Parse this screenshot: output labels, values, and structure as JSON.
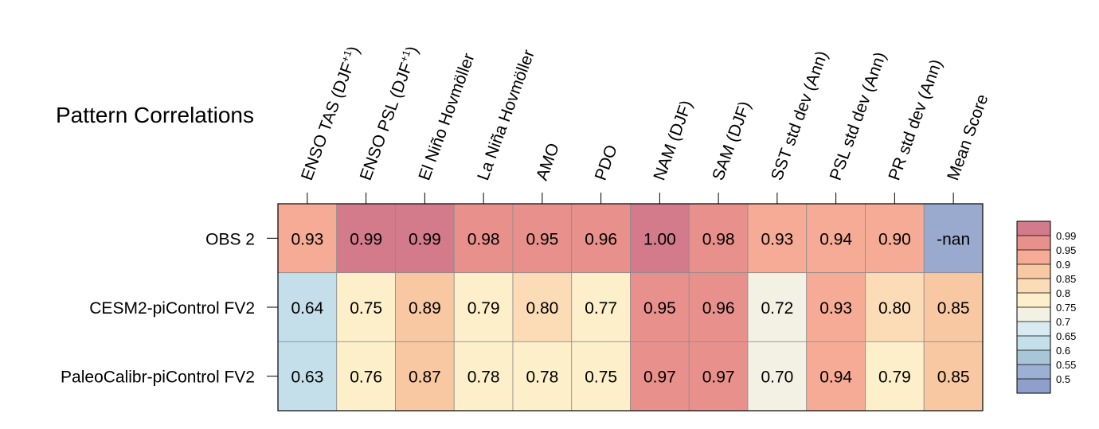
{
  "chart_data": {
    "type": "heatmap",
    "title": "Pattern Correlations",
    "columns": [
      {
        "label": "ENSO TAS (DJF",
        "sup": "+1",
        "suffix": ")"
      },
      {
        "label": "ENSO PSL (DJF",
        "sup": "+1",
        "suffix": ")"
      },
      {
        "label": "El Niño Hovmöller"
      },
      {
        "label": "La Niña Hovmöller"
      },
      {
        "label": "AMO"
      },
      {
        "label": "PDO"
      },
      {
        "label": "NAM (DJF)"
      },
      {
        "label": "SAM (DJF)"
      },
      {
        "label": "SST std dev (Ann)"
      },
      {
        "label": "PSL std dev (Ann)"
      },
      {
        "label": "PR std dev (Ann)"
      },
      {
        "label": "Mean Score"
      }
    ],
    "rows": [
      {
        "label": "OBS 2",
        "values": [
          0.93,
          0.99,
          0.99,
          0.98,
          0.95,
          0.96,
          1.0,
          0.98,
          0.93,
          0.94,
          0.9,
          null
        ],
        "text": [
          "0.93",
          "0.99",
          "0.99",
          "0.98",
          "0.95",
          "0.96",
          "1.00",
          "0.98",
          "0.93",
          "0.94",
          "0.90",
          "-nan"
        ]
      },
      {
        "label": "CESM2-piControl FV2",
        "values": [
          0.64,
          0.75,
          0.89,
          0.79,
          0.8,
          0.77,
          0.95,
          0.96,
          0.72,
          0.93,
          0.8,
          0.85
        ],
        "text": [
          "0.64",
          "0.75",
          "0.89",
          "0.79",
          "0.80",
          "0.77",
          "0.95",
          "0.96",
          "0.72",
          "0.93",
          "0.80",
          "0.85"
        ]
      },
      {
        "label": "PaleoCalibr-piControl FV2",
        "values": [
          0.63,
          0.76,
          0.87,
          0.78,
          0.78,
          0.75,
          0.97,
          0.97,
          0.7,
          0.94,
          0.79,
          0.85
        ],
        "text": [
          "0.63",
          "0.76",
          "0.87",
          "0.78",
          "0.78",
          "0.75",
          "0.97",
          "0.97",
          "0.70",
          "0.94",
          "0.79",
          "0.85"
        ]
      }
    ],
    "nan_color": "#9aaacf",
    "colorbar": {
      "labels": [
        "0.99",
        "0.95",
        "0.9",
        "0.85",
        "0.8",
        "0.75",
        "0.7",
        "0.65",
        "0.6",
        "0.55",
        "0.5"
      ],
      "colors": [
        "#d37a8b",
        "#e8908b",
        "#f5ab95",
        "#f8c8a2",
        "#fbdcb6",
        "#fcefc9",
        "#f3f1e4",
        "#d9ebf1",
        "#c4dfe9",
        "#a9c5d8",
        "#9bb0d2",
        "#8e9fcb"
      ]
    }
  }
}
